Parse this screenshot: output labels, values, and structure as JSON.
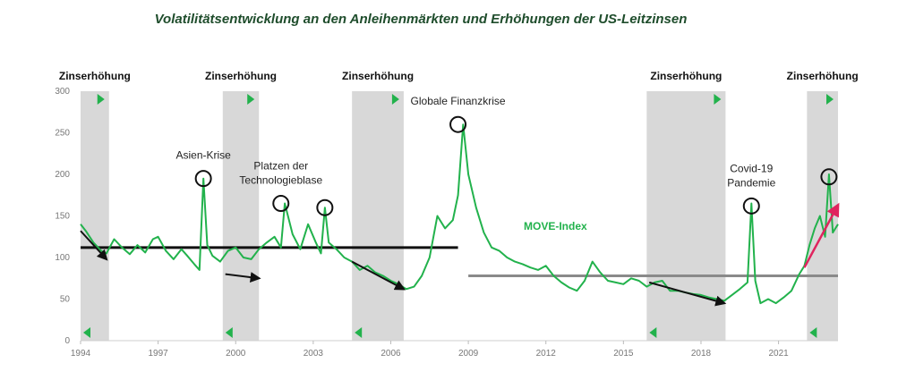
{
  "chart_data": {
    "type": "line",
    "title": "Volatilitätsentwicklung an den Anleihenmärkten und Erhöhungen der US-Leitzinsen",
    "xlabel": "",
    "ylabel": "",
    "xlim": [
      1994.0,
      2023.3
    ],
    "ylim": [
      0,
      300
    ],
    "x_ticks": [
      "1994",
      "1997",
      "2000",
      "2003",
      "2006",
      "2009",
      "2012",
      "2015",
      "2018",
      "2021"
    ],
    "y_ticks": [
      "0",
      "50",
      "100",
      "150",
      "200",
      "250",
      "300"
    ],
    "grid": false,
    "legend": "none",
    "series_label": "MOVE-Index",
    "colors": {
      "series": "#22b24c",
      "hike_band": "#d8d8d8",
      "avg_line_1": "#111111",
      "avg_line_2": "#8a8a8a",
      "trend_arrow": "#111111",
      "covid_arrow": "#e0245e",
      "marker_flag": "#22b24c"
    },
    "series": [
      {
        "name": "MOVE-Index",
        "x": [
          1994.0,
          1994.2,
          1994.5,
          1994.8,
          1995.0,
          1995.3,
          1995.6,
          1995.9,
          1996.2,
          1996.5,
          1996.8,
          1997.0,
          1997.3,
          1997.6,
          1997.9,
          1998.1,
          1998.4,
          1998.6,
          1998.75,
          1998.9,
          1999.1,
          1999.4,
          1999.7,
          2000.0,
          2000.3,
          2000.6,
          2000.9,
          2001.2,
          2001.5,
          2001.75,
          2001.9,
          2002.2,
          2002.5,
          2002.8,
          2003.1,
          2003.3,
          2003.45,
          2003.6,
          2003.9,
          2004.2,
          2004.5,
          2004.8,
          2005.1,
          2005.4,
          2005.7,
          2006.0,
          2006.3,
          2006.6,
          2006.9,
          2007.2,
          2007.5,
          2007.8,
          2008.1,
          2008.4,
          2008.6,
          2008.8,
          2009.0,
          2009.3,
          2009.6,
          2009.9,
          2010.2,
          2010.5,
          2010.8,
          2011.1,
          2011.4,
          2011.7,
          2012.0,
          2012.3,
          2012.6,
          2012.9,
          2013.2,
          2013.5,
          2013.8,
          2014.1,
          2014.4,
          2014.7,
          2015.0,
          2015.3,
          2015.6,
          2015.9,
          2016.2,
          2016.5,
          2016.8,
          2017.1,
          2017.4,
          2017.7,
          2018.0,
          2018.3,
          2018.6,
          2018.9,
          2019.2,
          2019.5,
          2019.8,
          2019.95,
          2020.1,
          2020.3,
          2020.6,
          2020.9,
          2021.2,
          2021.5,
          2021.8,
          2022.0,
          2022.2,
          2022.4,
          2022.6,
          2022.8,
          2022.95,
          2023.1,
          2023.3
        ],
        "values": [
          140,
          132,
          118,
          108,
          105,
          122,
          112,
          104,
          115,
          106,
          122,
          125,
          108,
          98,
          110,
          103,
          92,
          85,
          195,
          115,
          102,
          95,
          108,
          112,
          100,
          98,
          110,
          118,
          125,
          112,
          165,
          128,
          110,
          140,
          118,
          105,
          160,
          118,
          110,
          100,
          95,
          85,
          90,
          82,
          78,
          72,
          68,
          62,
          65,
          78,
          100,
          150,
          135,
          145,
          175,
          260,
          200,
          160,
          130,
          112,
          108,
          100,
          95,
          92,
          88,
          85,
          90,
          78,
          70,
          64,
          60,
          72,
          95,
          82,
          72,
          70,
          68,
          75,
          72,
          65,
          70,
          72,
          60,
          60,
          58,
          56,
          55,
          52,
          50,
          48,
          55,
          62,
          70,
          165,
          72,
          45,
          50,
          45,
          52,
          60,
          80,
          90,
          115,
          135,
          150,
          125,
          200,
          130,
          140
        ]
      }
    ],
    "hike_periods": [
      {
        "start": 1994.0,
        "end": 1995.1,
        "label": "Zinserhöhung"
      },
      {
        "start": 1999.5,
        "end": 2000.9,
        "label": "Zinserhöhung"
      },
      {
        "start": 2004.5,
        "end": 2006.5,
        "label": "Zinserhöhung"
      },
      {
        "start": 2015.9,
        "end": 2018.95,
        "label": "Zinserhöhung"
      },
      {
        "start": 2022.1,
        "end": 2023.3,
        "label": "Zinserhöhung"
      }
    ],
    "reference_lines": [
      {
        "x_start": 1994.0,
        "x_end": 2008.6,
        "y": 112
      },
      {
        "x_start": 2009.0,
        "x_end": 2023.3,
        "y": 78
      }
    ],
    "trend_arrows": [
      {
        "x1": 1994.0,
        "y1": 132,
        "x2": 1995.0,
        "y2": 98
      },
      {
        "x1": 1999.6,
        "y1": 80,
        "x2": 2000.9,
        "y2": 75
      },
      {
        "x1": 2004.5,
        "y1": 95,
        "x2": 2006.5,
        "y2": 62
      },
      {
        "x1": 2016.0,
        "y1": 70,
        "x2": 2018.9,
        "y2": 45
      }
    ],
    "covid_arrow": {
      "x1": 2022.0,
      "y1": 88,
      "x2": 2023.3,
      "y2": 163
    },
    "annotations": [
      {
        "x": 1998.75,
        "y": 195,
        "text_lines": [
          "Asien-Krise"
        ]
      },
      {
        "x": 2001.75,
        "y": 165,
        "text_lines": [
          "Platzen der",
          "Technologieblase"
        ]
      },
      {
        "x": 2003.45,
        "y": 160,
        "text_lines": []
      },
      {
        "x": 2008.6,
        "y": 260,
        "text_lines": [
          "Globale Finanzkrise"
        ]
      },
      {
        "x": 2019.95,
        "y": 162,
        "text_lines": [
          "Covid-19",
          "Pandemie"
        ]
      },
      {
        "x": 2022.95,
        "y": 197,
        "text_lines": []
      }
    ]
  }
}
